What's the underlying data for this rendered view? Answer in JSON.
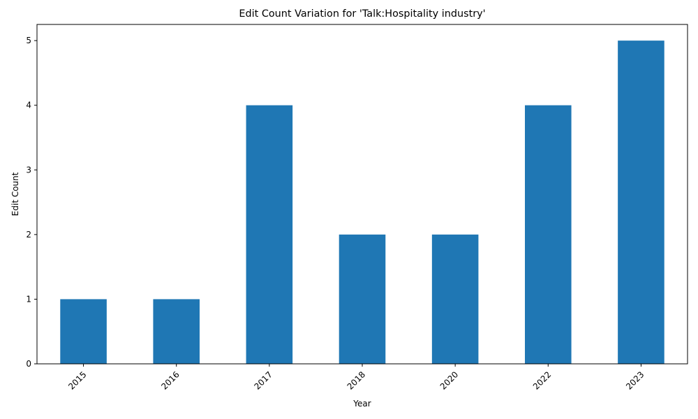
{
  "chart_data": {
    "type": "bar",
    "title": "Edit Count Variation for 'Talk:Hospitality industry'",
    "xlabel": "Year",
    "ylabel": "Edit Count",
    "categories": [
      "2015",
      "2016",
      "2017",
      "2018",
      "2020",
      "2022",
      "2023"
    ],
    "values": [
      1,
      1,
      4,
      2,
      2,
      4,
      5
    ],
    "ylim": [
      0,
      5.25
    ],
    "yticks": [
      0,
      1,
      2,
      3,
      4,
      5
    ],
    "bar_color": "#1f77b4",
    "grid": false,
    "legend": false
  }
}
